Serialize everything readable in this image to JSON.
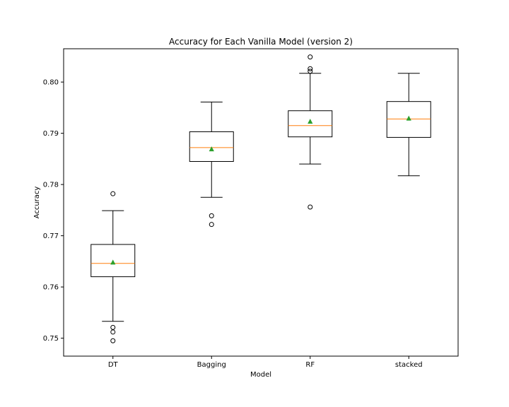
{
  "chart_data": {
    "type": "box",
    "title": "Accuracy for Each Vanilla Model (version 2)",
    "xlabel": "Model",
    "ylabel": "Accuracy",
    "ylim": [
      0.7465,
      0.8065
    ],
    "yticks": [
      0.75,
      0.76,
      0.77,
      0.78,
      0.79,
      0.8
    ],
    "ytick_labels": [
      "0.75",
      "0.76",
      "0.77",
      "0.78",
      "0.79",
      "0.80"
    ],
    "categories": [
      "DT",
      "Bagging",
      "RF",
      "stacked"
    ],
    "boxes": [
      {
        "name": "DT",
        "whisker_low": 0.7533,
        "q1": 0.762,
        "median": 0.7646,
        "q3": 0.7683,
        "whisker_high": 0.7749,
        "mean": 0.7648,
        "outliers": [
          0.7782,
          0.7521,
          0.7512,
          0.7495
        ]
      },
      {
        "name": "Bagging",
        "whisker_low": 0.7775,
        "q1": 0.7845,
        "median": 0.7872,
        "q3": 0.7903,
        "whisker_high": 0.7961,
        "mean": 0.7869,
        "outliers": [
          0.7739,
          0.7722
        ]
      },
      {
        "name": "RF",
        "whisker_low": 0.784,
        "q1": 0.7893,
        "median": 0.7915,
        "q3": 0.7944,
        "whisker_high": 0.8017,
        "mean": 0.7923,
        "outliers": [
          0.8049,
          0.8026,
          0.8021,
          0.7756
        ]
      },
      {
        "name": "stacked",
        "whisker_low": 0.7817,
        "q1": 0.7892,
        "median": 0.7928,
        "q3": 0.7962,
        "whisker_high": 0.8017,
        "mean": 0.7929,
        "outliers": []
      }
    ],
    "colors": {
      "box": "#000000",
      "median": "#ff7f0e",
      "mean": "#2ca02c",
      "outlier": "#000000"
    },
    "grid": false,
    "show_means": true
  }
}
